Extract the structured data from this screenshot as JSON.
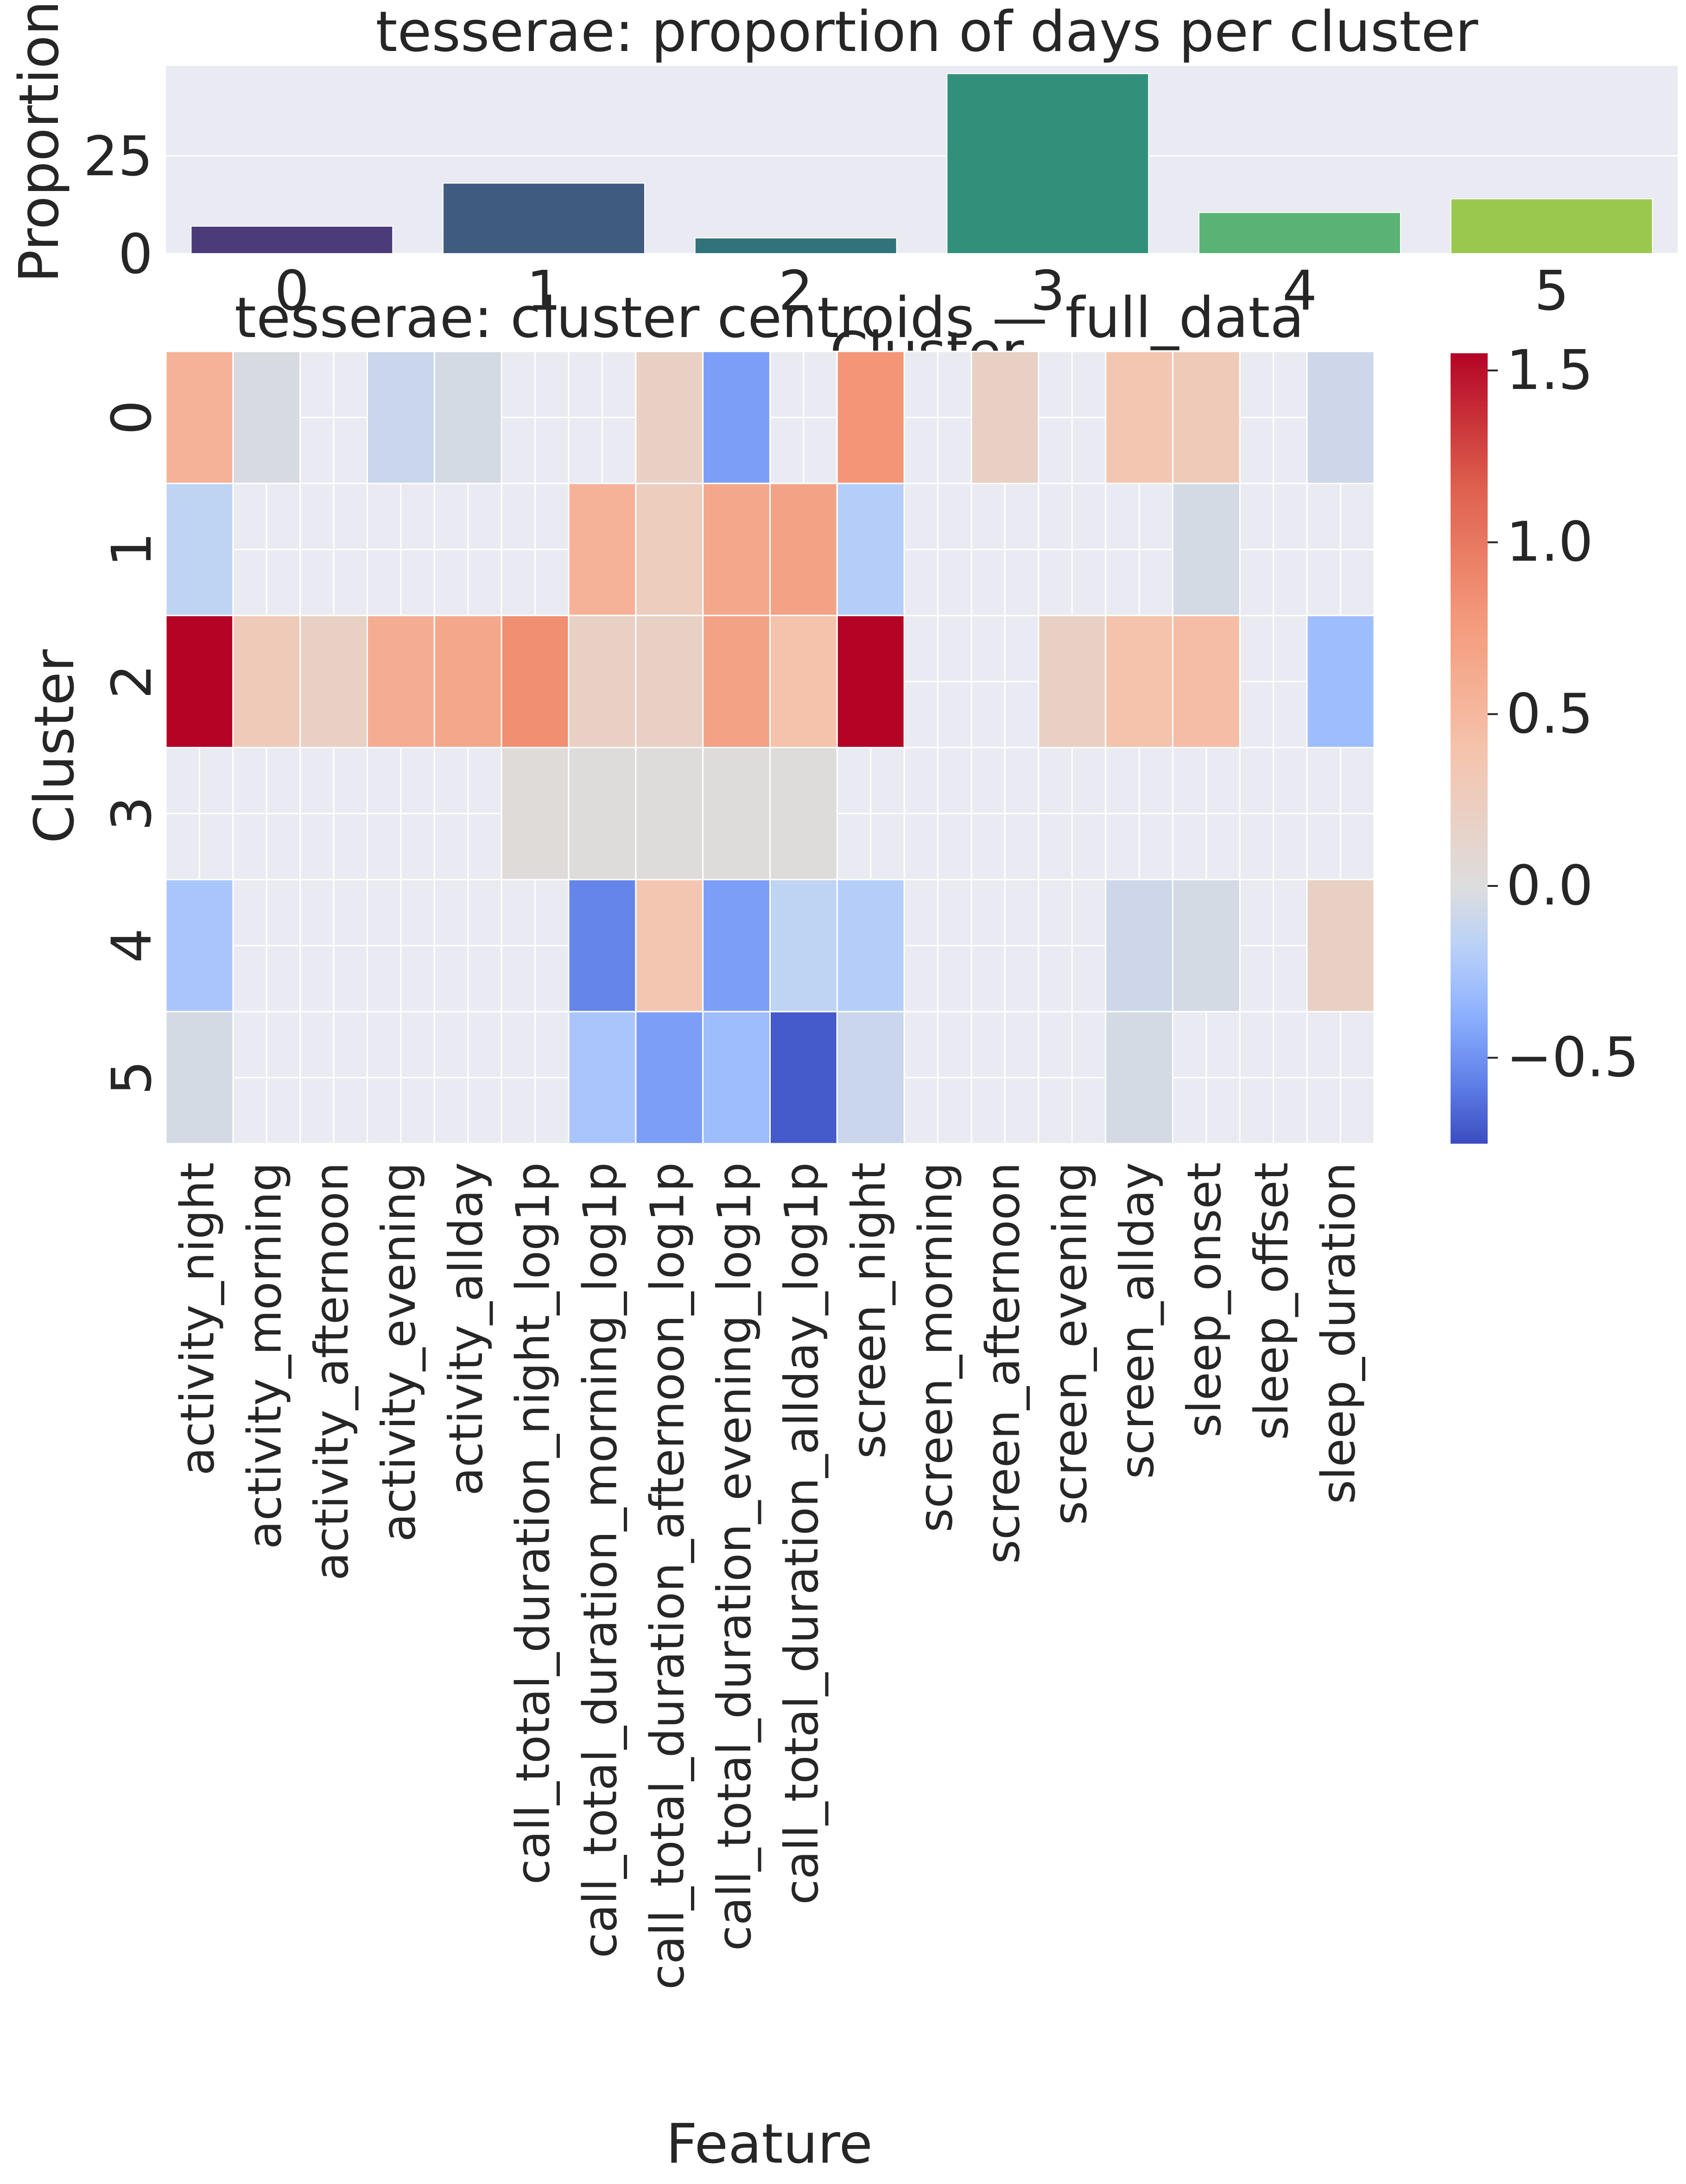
{
  "chart_data": [
    {
      "type": "bar",
      "title": "tesserae: proportion of days per cluster",
      "xlabel": "Cluster",
      "ylabel": "Proportion of days",
      "categories": [
        "0",
        "1",
        "2",
        "3",
        "4",
        "5"
      ],
      "values": [
        7,
        18,
        4,
        46,
        10.5,
        14
      ],
      "ylim": [
        0,
        48
      ],
      "yticks": [
        "0",
        "25"
      ],
      "bar_colors": [
        "#4b3b78",
        "#3f5b80",
        "#31727b",
        "#32907a",
        "#5ab374",
        "#9ac84e"
      ],
      "grid": true,
      "background": "#eaeaf2"
    },
    {
      "type": "heatmap",
      "title": "tesserae: cluster centroids — full_data",
      "xlabel": "Feature",
      "ylabel": "Cluster",
      "rows": [
        "0",
        "1",
        "2",
        "3",
        "4",
        "5"
      ],
      "columns": [
        "activity_night",
        "activity_morning",
        "activity_afternoon",
        "activity_evening",
        "activity_allday",
        "call_total_duration_night_log1p",
        "call_total_duration_morning_log1p",
        "call_total_duration_afternoon_log1p",
        "call_total_duration_evening_log1p",
        "call_total_duration_allday_log1p",
        "screen_night",
        "screen_morning",
        "screen_afternoon",
        "screen_evening",
        "screen_allday",
        "sleep_onset",
        "sleep_offset",
        "sleep_duration"
      ],
      "values": [
        [
          0.55,
          -0.03,
          null,
          -0.1,
          -0.05,
          null,
          null,
          0.2,
          -0.45,
          null,
          0.8,
          null,
          0.2,
          null,
          0.35,
          0.3,
          null,
          -0.08
        ],
        [
          -0.15,
          null,
          null,
          null,
          null,
          null,
          0.55,
          0.25,
          0.65,
          0.7,
          -0.2,
          null,
          null,
          null,
          null,
          -0.05,
          null,
          null
        ],
        [
          1.55,
          0.3,
          0.2,
          0.6,
          0.65,
          0.85,
          0.2,
          0.2,
          0.7,
          0.4,
          1.55,
          null,
          null,
          0.2,
          0.4,
          0.45,
          null,
          -0.3
        ],
        [
          null,
          null,
          null,
          null,
          null,
          0.03,
          0.02,
          0.02,
          0.02,
          0.02,
          null,
          null,
          null,
          null,
          null,
          null,
          null,
          null
        ],
        [
          -0.25,
          null,
          null,
          null,
          null,
          null,
          -0.55,
          0.35,
          -0.45,
          -0.15,
          -0.2,
          null,
          null,
          null,
          -0.08,
          -0.05,
          null,
          0.2
        ],
        [
          -0.05,
          null,
          null,
          null,
          null,
          null,
          -0.25,
          -0.45,
          -0.3,
          -0.7,
          -0.1,
          null,
          null,
          null,
          -0.05,
          null,
          null,
          null
        ]
      ],
      "colormap": "coolwarm",
      "vmin": -0.75,
      "vmax": 1.55,
      "colorbar_ticks": [
        -0.5,
        0.0,
        0.5,
        1.0,
        1.5
      ],
      "colorbar_tick_labels": [
        "−0.5",
        "0.0",
        "0.5",
        "1.0",
        "1.5"
      ]
    }
  ]
}
